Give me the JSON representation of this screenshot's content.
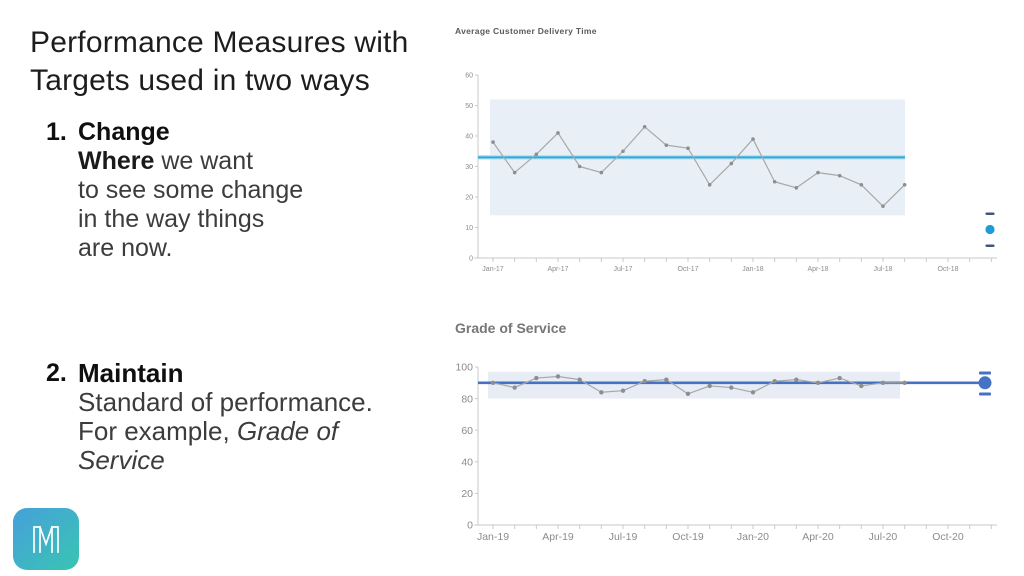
{
  "content": {
    "title": {
      "line1": "Performance Measures with",
      "line2": "Targets used in two ways"
    },
    "item1": {
      "number": "1.",
      "heading": "Change",
      "lead_bold": "Where",
      "lead_rest": " we want",
      "line2": "to see some change",
      "line3": "in the way things",
      "line4": "are now."
    },
    "item2": {
      "number": "2.",
      "heading": "Maintain",
      "line1": "Standard of performance.",
      "line2_normal": "For example, ",
      "line2_italic": "Grade of",
      "line3_italic": "Service"
    }
  },
  "logo": {
    "letter": "M",
    "gradient": [
      "#47A0DB",
      "#38C5B2"
    ]
  },
  "chart_data": [
    {
      "type": "line",
      "title": "Average Customer Delivery Time",
      "x_tick_labels": [
        "Jan-17",
        "Apr-17",
        "Jul-17",
        "Oct-17",
        "Jan-18",
        "Apr-18",
        "Jul-18",
        "Oct-18"
      ],
      "x_interval": "monthly",
      "values": [
        38,
        28,
        34,
        41,
        30,
        28,
        35,
        43,
        37,
        36,
        24,
        31,
        39,
        25,
        23,
        28,
        27,
        24,
        17,
        24
      ],
      "target": 33,
      "band": [
        14,
        52
      ],
      "ylim": [
        0,
        60
      ],
      "yticks": [
        0,
        10,
        20,
        30,
        40,
        50,
        60
      ],
      "legend_position": "none",
      "grid": false,
      "colors": {
        "series": "#A8A8A8",
        "marker": "#8E8E8E",
        "target": "#29A8DC",
        "target_halo": "#B9E2F4",
        "band": "#E8EFF6",
        "indicator_dash": "#3E5977",
        "indicator_dot": "#1E9CD8"
      }
    },
    {
      "type": "line",
      "title": "Grade of Service",
      "x_tick_labels": [
        "Jan-19",
        "Apr-19",
        "Jul-19",
        "Oct-19",
        "Jan-20",
        "Apr-20",
        "Jul-20",
        "Oct-20"
      ],
      "x_interval": "monthly",
      "values": [
        90,
        87,
        93,
        94,
        92,
        84,
        85,
        91,
        92,
        83,
        88,
        87,
        84,
        91,
        92,
        90,
        93,
        88,
        90,
        90
      ],
      "target": 90,
      "band": [
        80,
        97
      ],
      "ylim": [
        0,
        100
      ],
      "yticks": [
        0,
        20,
        40,
        60,
        80,
        100
      ],
      "legend_position": "none",
      "grid": false,
      "colors": {
        "series": "#A8A8A8",
        "marker": "#8E8E8E",
        "target": "#4472C4",
        "band": "#E8ECF5",
        "indicator_dash": "#4472C4",
        "indicator_dot": "#4472C4"
      }
    }
  ]
}
